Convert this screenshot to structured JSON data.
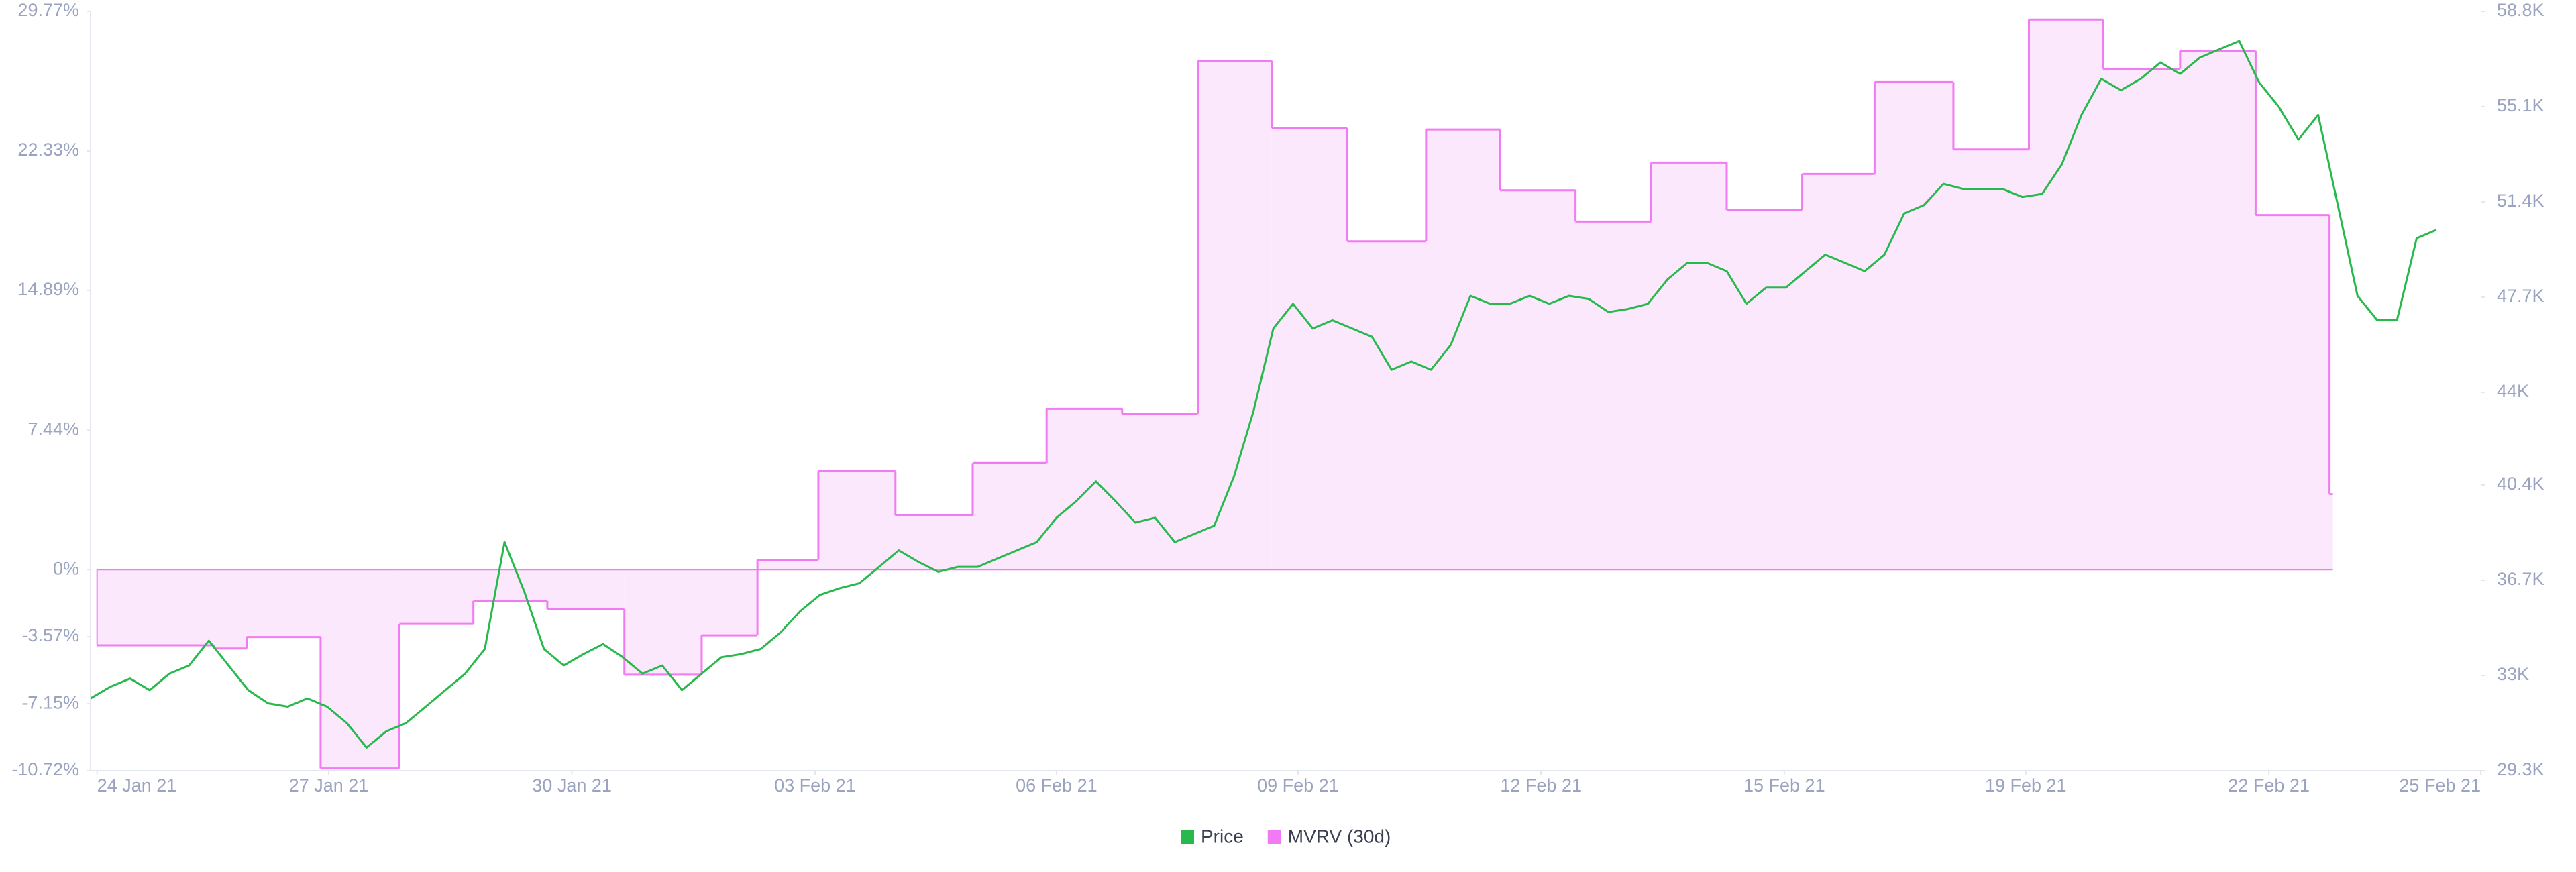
{
  "chart_data": {
    "type": "line",
    "xlim": [
      0,
      121.25
    ],
    "xticks": [
      {
        "value": 0.33,
        "label": "24 Jan 21"
      },
      {
        "value": 12.08,
        "label": "27 Jan 21"
      },
      {
        "value": 24.42,
        "label": "30 Jan 21"
      },
      {
        "value": 36.75,
        "label": "03 Feb 21"
      },
      {
        "value": 49,
        "label": "06 Feb 21"
      },
      {
        "value": 61.25,
        "label": "09 Feb 21"
      },
      {
        "value": 73.58,
        "label": "12 Feb 21"
      },
      {
        "value": 85.92,
        "label": "15 Feb 21"
      },
      {
        "value": 98.17,
        "label": "19 Feb 21"
      },
      {
        "value": 110.5,
        "label": "22 Feb 21"
      },
      {
        "value": 121.25,
        "label": "25 Feb 21"
      }
    ],
    "ylim": [
      -10.72,
      29.77
    ],
    "yticks": [
      {
        "value": 29.77,
        "label": "29.77%"
      },
      {
        "value": 22.33,
        "label": "22.33%"
      },
      {
        "value": 14.89,
        "label": "14.89%"
      },
      {
        "value": 7.44,
        "label": "7.44%"
      },
      {
        "value": 0,
        "label": "0%"
      },
      {
        "value": -3.57,
        "label": "-3.57%"
      },
      {
        "value": -7.15,
        "label": "-7.15%"
      },
      {
        "value": -10.72,
        "label": "-10.72%"
      }
    ],
    "y2lim": [
      29300,
      58800
    ],
    "y2ticks": [
      {
        "value": 58800,
        "label": "58.8K"
      },
      {
        "value": 55100,
        "label": "55.1K"
      },
      {
        "value": 51400,
        "label": "51.4K"
      },
      {
        "value": 47700,
        "label": "47.7K"
      },
      {
        "value": 44000,
        "label": "44K"
      },
      {
        "value": 40400,
        "label": "40.4K"
      },
      {
        "value": 36700,
        "label": "36.7K"
      },
      {
        "value": 33000,
        "label": "33K"
      },
      {
        "value": 29300,
        "label": "29.3K"
      }
    ],
    "series": [
      {
        "name": "Price",
        "color": "#27b94c",
        "kind": "line",
        "axis": "y2",
        "x": [
          0,
          1,
          2,
          3,
          4,
          5,
          6,
          7,
          8,
          9,
          10,
          11,
          12,
          13,
          14,
          15,
          16,
          17,
          18,
          19,
          20,
          21,
          22,
          23,
          24,
          25,
          26,
          27,
          28,
          29,
          30,
          31,
          32,
          33,
          34,
          35,
          36,
          37,
          38,
          39,
          40,
          41,
          42,
          43,
          44,
          45,
          46,
          47,
          48,
          49,
          50,
          51,
          52,
          53,
          54,
          55,
          56,
          57,
          58,
          59,
          60,
          61,
          62,
          63,
          64,
          65,
          66,
          67,
          68,
          69,
          70,
          71,
          72,
          73,
          74,
          75,
          76,
          77,
          78,
          79,
          80,
          81,
          82,
          83,
          84,
          85,
          86,
          87,
          88,
          89,
          90,
          91,
          92,
          93,
          94,
          95,
          96,
          97,
          98,
          99,
          100,
          101,
          102,
          103,
          104,
          105,
          106,
          107,
          108,
          109,
          110,
          111,
          112,
          113,
          114,
          115,
          116,
          117,
          118,
          119
        ],
        "values": [
          32110,
          32560,
          32880,
          32430,
          33070,
          33390,
          34350,
          33390,
          32430,
          31920,
          31790,
          32110,
          31790,
          31150,
          30200,
          30830,
          31150,
          31790,
          32430,
          33070,
          34030,
          38180,
          36260,
          34030,
          33390,
          33830,
          34220,
          33710,
          33070,
          33390,
          32430,
          33070,
          33710,
          33830,
          34030,
          34670,
          35500,
          36130,
          36390,
          36580,
          37220,
          37860,
          37410,
          37030,
          37220,
          37220,
          37540,
          37860,
          38180,
          39130,
          39770,
          40540,
          39770,
          38940,
          39130,
          38180,
          38500,
          38820,
          40730,
          43280,
          46480,
          47440,
          46480,
          46800,
          46480,
          46160,
          44880,
          45200,
          44880,
          45840,
          47750,
          47440,
          47440,
          47750,
          47440,
          47750,
          47630,
          47120,
          47240,
          47440,
          48390,
          49030,
          49030,
          48710,
          47440,
          48070,
          48070,
          48710,
          49350,
          49030,
          48710,
          49350,
          50950,
          51270,
          52100,
          51900,
          51900,
          51900,
          51590,
          51710,
          52860,
          54780,
          56180,
          55740,
          56180,
          56820,
          56370,
          57010,
          57330,
          57650,
          56050,
          55100,
          53820,
          54780,
          51270,
          47750,
          46800,
          46800,
          49990,
          50310
        ]
      },
      {
        "name": "MVRV (30d)",
        "color": "#f27af2",
        "fill": "#fce8fc",
        "kind": "step-area",
        "axis": "y",
        "x": [
          0.33,
          6.25,
          7.92,
          11.67,
          15.67,
          19.42,
          23.17,
          27.08,
          31,
          33.83,
          36.92,
          40.83,
          44.75,
          48.5,
          52.33,
          56.17,
          59.92,
          63.75,
          67.75,
          71.5,
          75.33,
          79.17,
          83,
          86.83,
          90.5,
          94.5,
          98.33,
          102.08,
          106,
          109.83,
          113.58
        ],
        "values": [
          -4.03,
          -4.2,
          -3.59,
          -10.6,
          -2.89,
          -1.66,
          -2.1,
          -5.6,
          -3.5,
          0.53,
          5.25,
          2.89,
          5.69,
          8.58,
          8.32,
          27.14,
          23.55,
          17.51,
          23.47,
          20.23,
          18.56,
          21.71,
          19.18,
          21.1,
          26,
          22.41,
          29.33,
          26.71,
          27.67,
          18.91,
          4.03
        ]
      }
    ]
  }
}
